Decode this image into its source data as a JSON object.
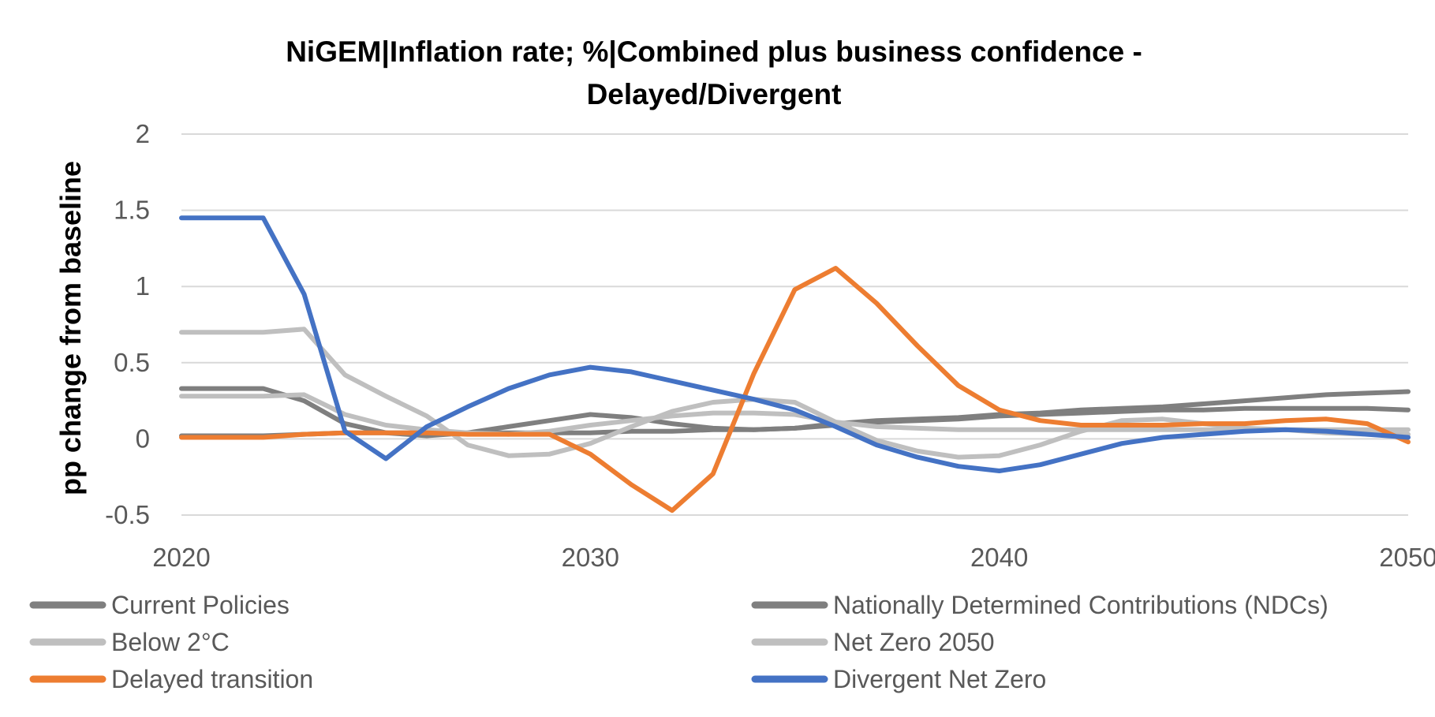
{
  "chart_data": {
    "type": "line",
    "title_lines": [
      "NiGEM|Inflation rate; %|Combined plus business confidence -",
      "Delayed/Divergent"
    ],
    "xlabel": "",
    "ylabel": "pp change from baseline",
    "x": [
      2020,
      2021,
      2022,
      2023,
      2024,
      2025,
      2026,
      2027,
      2028,
      2029,
      2030,
      2031,
      2032,
      2033,
      2034,
      2035,
      2036,
      2037,
      2038,
      2039,
      2040,
      2041,
      2042,
      2043,
      2044,
      2045,
      2046,
      2047,
      2048,
      2049,
      2050
    ],
    "xlim": [
      2020,
      2050
    ],
    "ylim": [
      -0.5,
      2
    ],
    "x_ticks": [
      "2020",
      "2030",
      "2040",
      "2050"
    ],
    "x_tick_values": [
      2020,
      2030,
      2040,
      2050
    ],
    "y_ticks": [
      "-0.5",
      "0",
      "0.5",
      "1",
      "1.5",
      "2"
    ],
    "y_tick_values": [
      -0.5,
      0,
      0.5,
      1,
      1.5,
      2
    ],
    "grid": "horizontal",
    "legend_position": "bottom",
    "series": [
      {
        "name": "Current Policies",
        "color": "#7f7f7f",
        "values": [
          0.33,
          0.33,
          0.33,
          0.25,
          0.1,
          0.04,
          0.02,
          0.04,
          0.08,
          0.12,
          0.16,
          0.14,
          0.1,
          0.07,
          0.06,
          0.07,
          0.1,
          0.12,
          0.13,
          0.14,
          0.16,
          0.17,
          0.19,
          0.2,
          0.21,
          0.23,
          0.25,
          0.27,
          0.29,
          0.3,
          0.31
        ]
      },
      {
        "name": "Nationally Determined Contributions (NDCs)",
        "color": "#7f7f7f",
        "values": [
          0.02,
          0.02,
          0.02,
          0.03,
          0.04,
          0.04,
          0.04,
          0.04,
          0.04,
          0.04,
          0.04,
          0.05,
          0.05,
          0.06,
          0.06,
          0.07,
          0.09,
          0.11,
          0.12,
          0.13,
          0.15,
          0.16,
          0.17,
          0.18,
          0.19,
          0.19,
          0.2,
          0.2,
          0.2,
          0.2,
          0.19
        ]
      },
      {
        "name": "Below 2°C",
        "color": "#bfbfbf",
        "values": [
          0.28,
          0.28,
          0.28,
          0.29,
          0.16,
          0.09,
          0.06,
          0.04,
          0.03,
          0.05,
          0.09,
          0.12,
          0.15,
          0.17,
          0.17,
          0.16,
          0.11,
          0.08,
          0.07,
          0.06,
          0.06,
          0.06,
          0.06,
          0.06,
          0.06,
          0.06,
          0.06,
          0.06,
          0.06,
          0.06,
          0.06
        ]
      },
      {
        "name": "Net Zero 2050",
        "color": "#bfbfbf",
        "values": [
          0.7,
          0.7,
          0.7,
          0.72,
          0.42,
          0.28,
          0.15,
          -0.04,
          -0.11,
          -0.1,
          -0.03,
          0.08,
          0.18,
          0.24,
          0.26,
          0.24,
          0.11,
          -0.01,
          -0.08,
          -0.12,
          -0.11,
          -0.04,
          0.05,
          0.12,
          0.13,
          0.1,
          0.07,
          0.06,
          0.04,
          0.03,
          0.03
        ]
      },
      {
        "name": "Delayed transition",
        "color": "#ed7d31",
        "values": [
          0.01,
          0.01,
          0.01,
          0.03,
          0.04,
          0.04,
          0.04,
          0.03,
          0.03,
          0.03,
          -0.1,
          -0.3,
          -0.47,
          -0.23,
          0.43,
          0.98,
          1.12,
          0.89,
          0.61,
          0.35,
          0.19,
          0.12,
          0.09,
          0.09,
          0.09,
          0.1,
          0.1,
          0.12,
          0.13,
          0.1,
          -0.02
        ]
      },
      {
        "name": "Divergent Net Zero",
        "color": "#4472c4",
        "values": [
          1.45,
          1.45,
          1.45,
          0.95,
          0.05,
          -0.13,
          0.08,
          0.21,
          0.33,
          0.42,
          0.47,
          0.44,
          0.38,
          0.32,
          0.26,
          0.19,
          0.08,
          -0.04,
          -0.12,
          -0.18,
          -0.21,
          -0.17,
          -0.1,
          -0.03,
          0.01,
          0.03,
          0.05,
          0.06,
          0.05,
          0.03,
          0.01
        ]
      }
    ]
  }
}
